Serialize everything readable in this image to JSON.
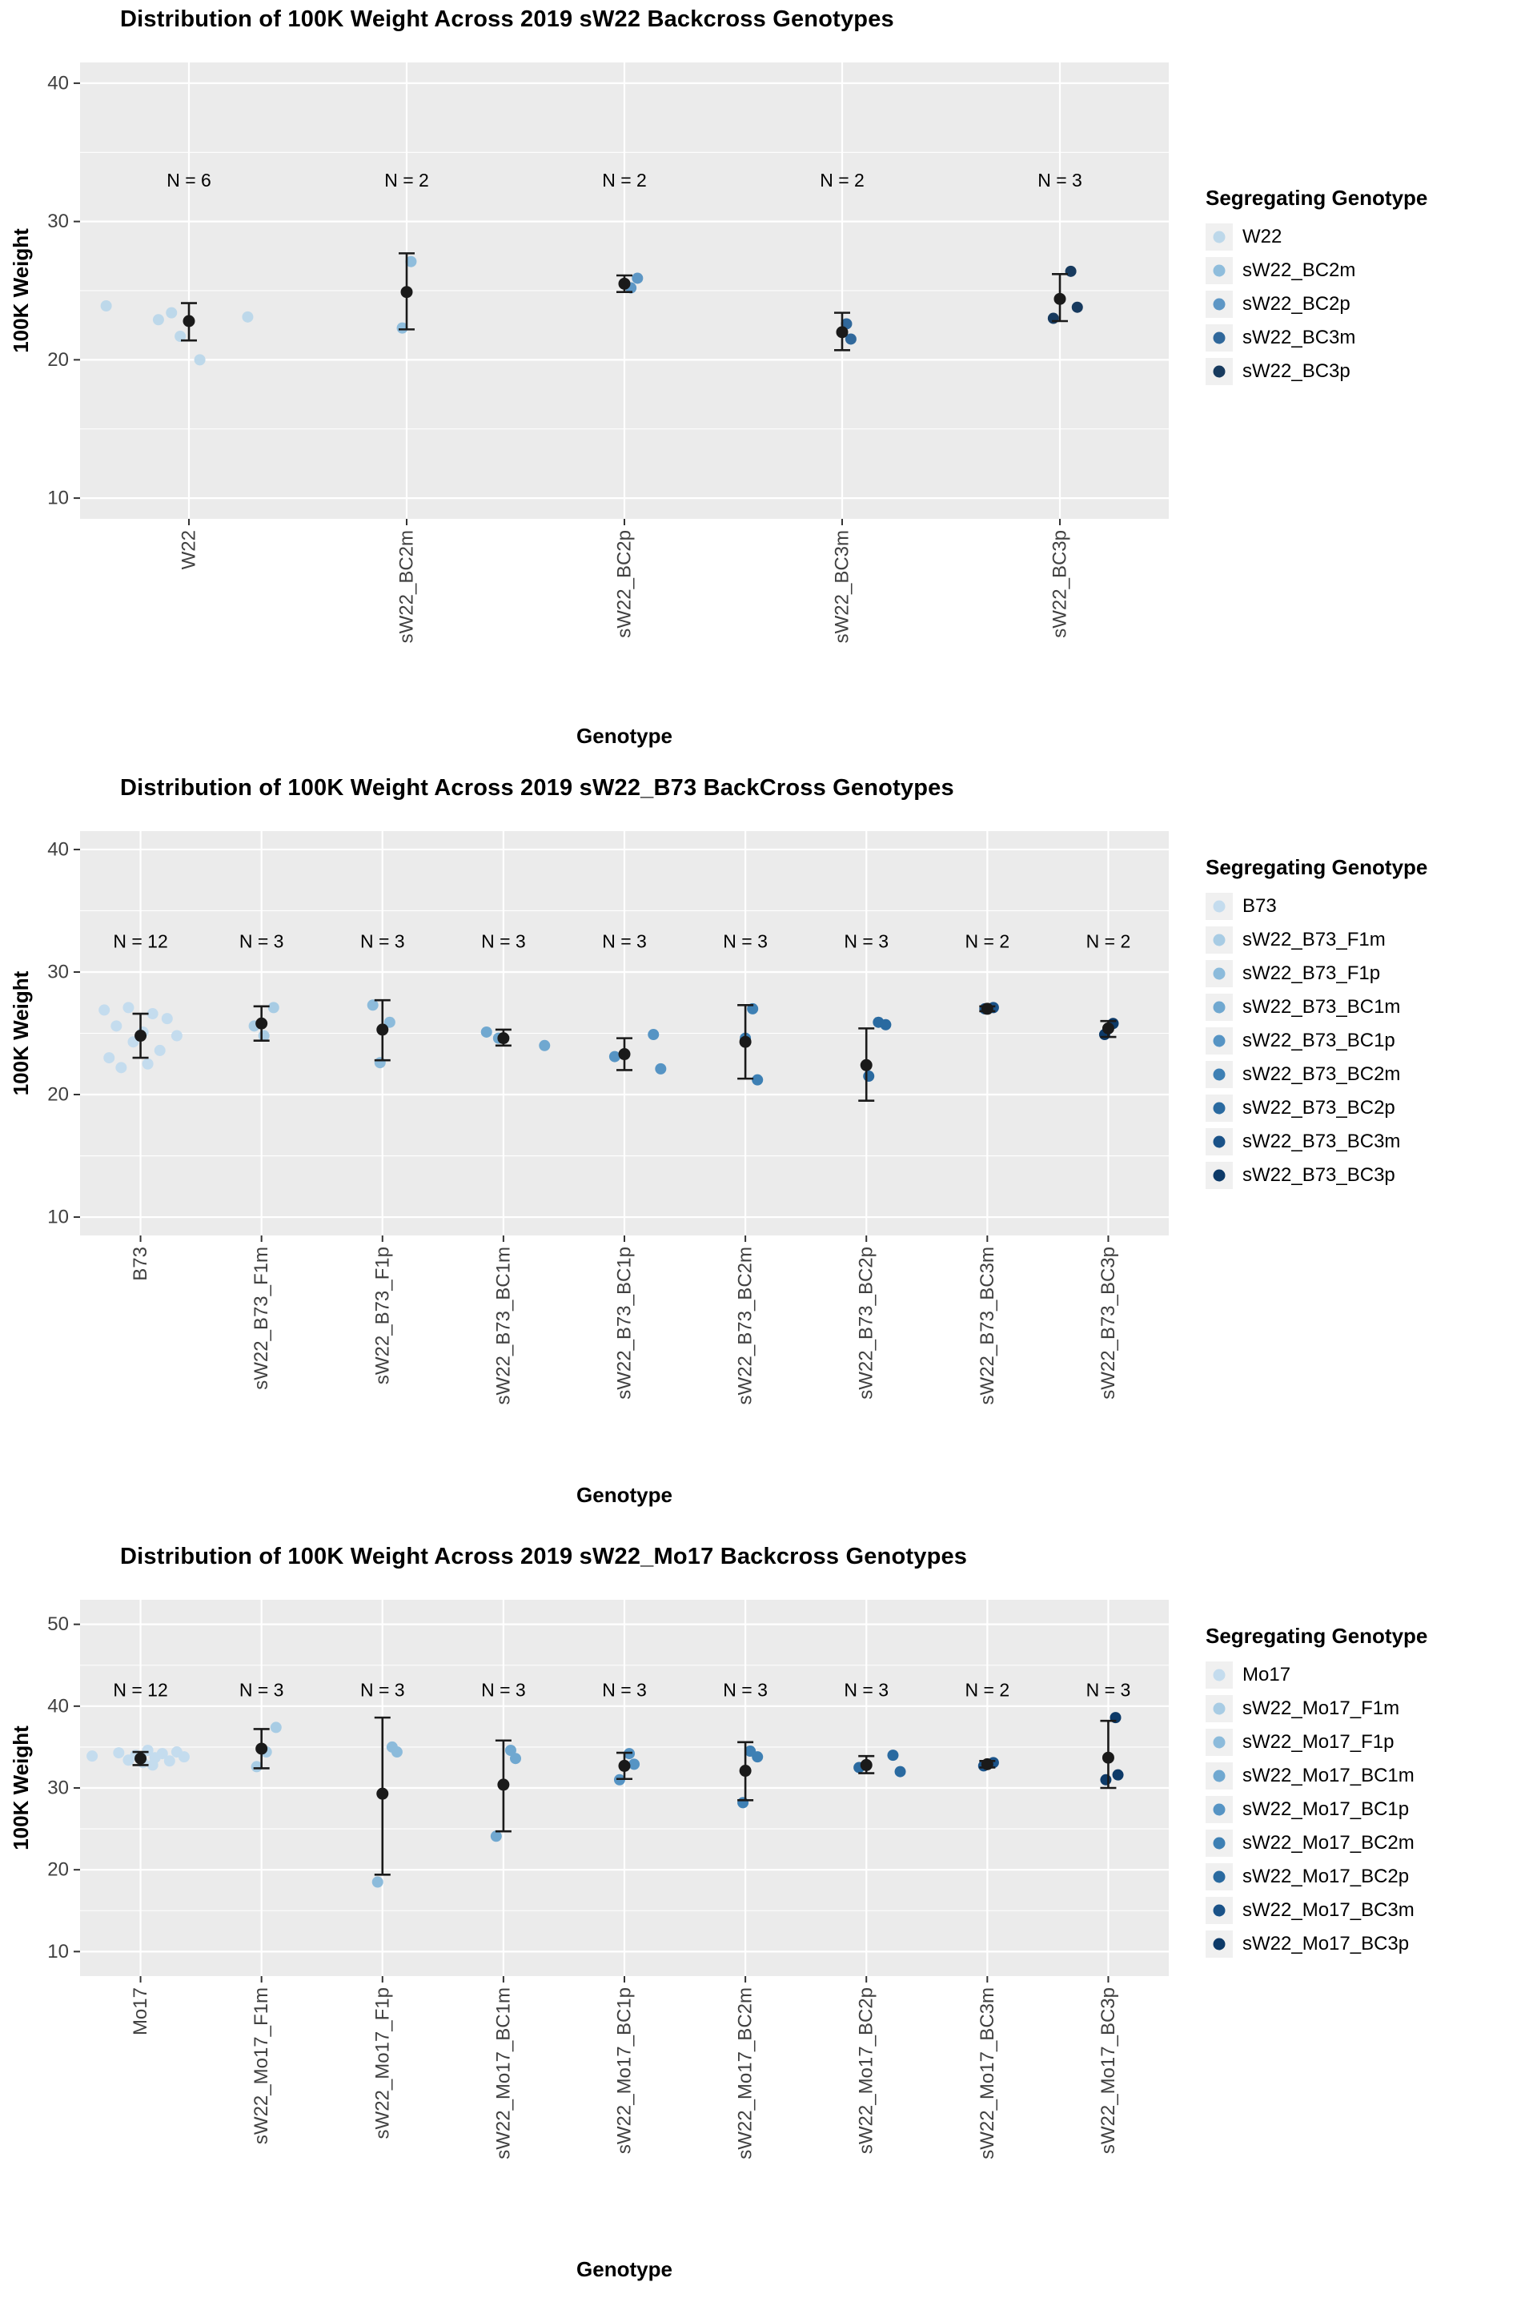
{
  "chart_data": [
    {
      "type": "scatter",
      "title": "Distribution of 100K Weight Across 2019 sW22 Backcross Genotypes",
      "xlabel": "Genotype",
      "ylabel": "100K Weight",
      "legend_title": "Segregating Genotype",
      "ylim": [
        8.5,
        41.5
      ],
      "yticks": [
        10,
        20,
        30,
        40
      ],
      "n_label_y": 33,
      "panel_bg": "#EBEBEB",
      "grid_color": "#FFFFFF",
      "stat_color": "#1a1a1a",
      "groups": [
        {
          "label": "W22",
          "color": "#BDD8EA",
          "n_label": "N = 6",
          "mean": 22.8,
          "lo": 21.4,
          "hi": 24.1,
          "points": [
            {
              "dx": -0.38,
              "y": 23.9
            },
            {
              "dx": -0.08,
              "y": 23.4
            },
            {
              "dx": -0.14,
              "y": 22.9
            },
            {
              "dx": -0.04,
              "y": 21.7
            },
            {
              "dx": 0.05,
              "y": 20.0
            },
            {
              "dx": 0.27,
              "y": 23.1
            }
          ]
        },
        {
          "label": "sW22_BC2m",
          "color": "#8FBDDC",
          "n_label": "N = 2",
          "mean": 24.9,
          "lo": 22.2,
          "hi": 27.7,
          "points": [
            {
              "dx": 0.02,
              "y": 27.1
            },
            {
              "dx": -0.02,
              "y": 22.3
            }
          ]
        },
        {
          "label": "sW22_BC2p",
          "color": "#5E97C5",
          "n_label": "N = 2",
          "mean": 25.5,
          "lo": 24.9,
          "hi": 26.1,
          "points": [
            {
              "dx": 0.06,
              "y": 25.9
            },
            {
              "dx": 0.03,
              "y": 25.2
            }
          ]
        },
        {
          "label": "sW22_BC3m",
          "color": "#30689B",
          "n_label": "N = 2",
          "mean": 22.0,
          "lo": 20.7,
          "hi": 23.4,
          "points": [
            {
              "dx": 0.02,
              "y": 22.6
            },
            {
              "dx": 0.04,
              "y": 21.5
            }
          ]
        },
        {
          "label": "sW22_BC3p",
          "color": "#173A5E",
          "n_label": "N = 3",
          "mean": 24.4,
          "lo": 22.8,
          "hi": 26.2,
          "points": [
            {
              "dx": 0.05,
              "y": 26.4
            },
            {
              "dx": -0.03,
              "y": 23.0
            },
            {
              "dx": 0.08,
              "y": 23.8
            }
          ]
        }
      ]
    },
    {
      "type": "scatter",
      "title": "Distribution of 100K Weight Across 2019 sW22_B73 BackCross Genotypes",
      "xlabel": "Genotype",
      "ylabel": "100K Weight",
      "legend_title": "Segregating Genotype",
      "ylim": [
        8.5,
        41.5
      ],
      "yticks": [
        10,
        20,
        30,
        40
      ],
      "n_label_y": 32.5,
      "panel_bg": "#EBEBEB",
      "grid_color": "#FFFFFF",
      "stat_color": "#1a1a1a",
      "groups": [
        {
          "label": "B73",
          "color": "#C4DCEE",
          "n_label": "N = 12",
          "mean": 24.8,
          "lo": 23.0,
          "hi": 26.6,
          "points": [
            {
              "dx": -0.3,
              "y": 26.9
            },
            {
              "dx": -0.1,
              "y": 27.1
            },
            {
              "dx": 0.1,
              "y": 26.6
            },
            {
              "dx": 0.22,
              "y": 26.2
            },
            {
              "dx": -0.2,
              "y": 25.6
            },
            {
              "dx": 0.02,
              "y": 25.1
            },
            {
              "dx": 0.3,
              "y": 24.8
            },
            {
              "dx": -0.06,
              "y": 24.3
            },
            {
              "dx": 0.16,
              "y": 23.6
            },
            {
              "dx": -0.26,
              "y": 23.0
            },
            {
              "dx": 0.06,
              "y": 22.5
            },
            {
              "dx": -0.16,
              "y": 22.2
            }
          ]
        },
        {
          "label": "sW22_B73_F1m",
          "color": "#A8CCE4",
          "n_label": "N = 3",
          "mean": 25.8,
          "lo": 24.4,
          "hi": 27.2,
          "points": [
            {
              "dx": 0.1,
              "y": 27.1
            },
            {
              "dx": -0.06,
              "y": 25.6
            },
            {
              "dx": 0.02,
              "y": 24.8
            }
          ]
        },
        {
          "label": "sW22_B73_F1p",
          "color": "#8CBBDB",
          "n_label": "N = 3",
          "mean": 25.3,
          "lo": 22.8,
          "hi": 27.7,
          "points": [
            {
              "dx": -0.08,
              "y": 27.3
            },
            {
              "dx": 0.06,
              "y": 25.9
            },
            {
              "dx": -0.02,
              "y": 22.6
            }
          ]
        },
        {
          "label": "sW22_B73_BC1m",
          "color": "#70A8D0",
          "n_label": "N = 3",
          "mean": 24.6,
          "lo": 24.0,
          "hi": 25.3,
          "points": [
            {
              "dx": -0.14,
              "y": 25.1
            },
            {
              "dx": -0.04,
              "y": 24.6
            },
            {
              "dx": 0.34,
              "y": 24.0
            }
          ]
        },
        {
          "label": "sW22_B73_BC1p",
          "color": "#5694C4",
          "n_label": "N = 3",
          "mean": 23.3,
          "lo": 22.0,
          "hi": 24.6,
          "points": [
            {
              "dx": -0.08,
              "y": 23.1
            },
            {
              "dx": 0.24,
              "y": 24.9
            },
            {
              "dx": 0.3,
              "y": 22.1
            }
          ]
        },
        {
          "label": "sW22_B73_BC2m",
          "color": "#3E80B4",
          "n_label": "N = 3",
          "mean": 24.3,
          "lo": 21.3,
          "hi": 27.3,
          "points": [
            {
              "dx": 0.06,
              "y": 27.0
            },
            {
              "dx": 0.0,
              "y": 24.6
            },
            {
              "dx": 0.1,
              "y": 21.2
            }
          ]
        },
        {
          "label": "sW22_B73_BC2p",
          "color": "#2A6AA0",
          "n_label": "N = 3",
          "mean": 22.4,
          "lo": 19.5,
          "hi": 25.4,
          "points": [
            {
              "dx": 0.1,
              "y": 25.9
            },
            {
              "dx": 0.16,
              "y": 25.7
            },
            {
              "dx": 0.02,
              "y": 21.5
            }
          ]
        },
        {
          "label": "sW22_B73_BC3m",
          "color": "#1A5288",
          "n_label": "N = 2",
          "mean": 27.0,
          "lo": 26.8,
          "hi": 27.2,
          "points": [
            {
              "dx": -0.02,
              "y": 27.0
            },
            {
              "dx": 0.05,
              "y": 27.1
            }
          ]
        },
        {
          "label": "sW22_B73_BC3p",
          "color": "#0D3A68",
          "n_label": "N = 2",
          "mean": 25.4,
          "lo": 24.7,
          "hi": 26.0,
          "points": [
            {
              "dx": -0.03,
              "y": 24.9
            },
            {
              "dx": 0.04,
              "y": 25.8
            }
          ]
        }
      ]
    },
    {
      "type": "scatter",
      "title": "Distribution of 100K Weight Across 2019 sW22_Mo17 Backcross Genotypes",
      "xlabel": "Genotype",
      "ylabel": "100K Weight",
      "legend_title": "Segregating Genotype",
      "ylim": [
        7,
        53
      ],
      "yticks": [
        10,
        20,
        30,
        40,
        50
      ],
      "n_label_y": 42,
      "panel_bg": "#EBEBEB",
      "grid_color": "#FFFFFF",
      "stat_color": "#1a1a1a",
      "groups": [
        {
          "label": "Mo17",
          "color": "#C4DCEE",
          "n_label": "N = 12",
          "mean": 33.6,
          "lo": 32.8,
          "hi": 34.4,
          "points": [
            {
              "dx": -0.4,
              "y": 33.9
            },
            {
              "dx": -0.18,
              "y": 34.3
            },
            {
              "dx": -0.1,
              "y": 33.4
            },
            {
              "dx": -0.04,
              "y": 34.0
            },
            {
              "dx": 0.02,
              "y": 33.1
            },
            {
              "dx": 0.06,
              "y": 34.6
            },
            {
              "dx": 0.12,
              "y": 33.7
            },
            {
              "dx": 0.18,
              "y": 34.2
            },
            {
              "dx": 0.24,
              "y": 33.3
            },
            {
              "dx": 0.3,
              "y": 34.4
            },
            {
              "dx": 0.36,
              "y": 33.8
            },
            {
              "dx": 0.1,
              "y": 32.8
            }
          ]
        },
        {
          "label": "sW22_Mo17_F1m",
          "color": "#A8CCE4",
          "n_label": "N = 3",
          "mean": 34.8,
          "lo": 32.4,
          "hi": 37.2,
          "points": [
            {
              "dx": 0.12,
              "y": 37.4
            },
            {
              "dx": -0.04,
              "y": 32.6
            },
            {
              "dx": 0.04,
              "y": 34.4
            }
          ]
        },
        {
          "label": "sW22_Mo17_F1p",
          "color": "#8CBBDB",
          "n_label": "N = 3",
          "mean": 29.3,
          "lo": 19.4,
          "hi": 38.6,
          "points": [
            {
              "dx": 0.08,
              "y": 35.0
            },
            {
              "dx": 0.12,
              "y": 34.4
            },
            {
              "dx": -0.04,
              "y": 18.5
            }
          ]
        },
        {
          "label": "sW22_Mo17_BC1m",
          "color": "#70A8D0",
          "n_label": "N = 3",
          "mean": 30.4,
          "lo": 24.7,
          "hi": 35.8,
          "points": [
            {
              "dx": 0.06,
              "y": 34.6
            },
            {
              "dx": 0.1,
              "y": 33.6
            },
            {
              "dx": -0.06,
              "y": 24.1
            }
          ]
        },
        {
          "label": "sW22_Mo17_BC1p",
          "color": "#5694C4",
          "n_label": "N = 3",
          "mean": 32.7,
          "lo": 31.1,
          "hi": 34.3,
          "points": [
            {
              "dx": 0.04,
              "y": 34.2
            },
            {
              "dx": -0.04,
              "y": 31.0
            },
            {
              "dx": 0.08,
              "y": 32.9
            }
          ]
        },
        {
          "label": "sW22_Mo17_BC2m",
          "color": "#3E80B4",
          "n_label": "N = 3",
          "mean": 32.1,
          "lo": 28.5,
          "hi": 35.6,
          "points": [
            {
              "dx": 0.04,
              "y": 34.5
            },
            {
              "dx": 0.1,
              "y": 33.8
            },
            {
              "dx": -0.02,
              "y": 28.2
            }
          ]
        },
        {
          "label": "sW22_Mo17_BC2p",
          "color": "#2A6AA0",
          "n_label": "N = 3",
          "mean": 32.8,
          "lo": 31.8,
          "hi": 33.9,
          "points": [
            {
              "dx": -0.06,
              "y": 32.5
            },
            {
              "dx": 0.22,
              "y": 34.0
            },
            {
              "dx": 0.28,
              "y": 32.0
            }
          ]
        },
        {
          "label": "sW22_Mo17_BC3m",
          "color": "#1A5288",
          "n_label": "N = 2",
          "mean": 32.9,
          "lo": 32.5,
          "hi": 33.3,
          "points": [
            {
              "dx": -0.03,
              "y": 32.7
            },
            {
              "dx": 0.05,
              "y": 33.1
            }
          ]
        },
        {
          "label": "sW22_Mo17_BC3p",
          "color": "#0D3A68",
          "n_label": "N = 3",
          "mean": 33.7,
          "lo": 30.0,
          "hi": 38.2,
          "points": [
            {
              "dx": 0.06,
              "y": 38.6
            },
            {
              "dx": -0.02,
              "y": 31.0
            },
            {
              "dx": 0.08,
              "y": 31.6
            }
          ]
        }
      ]
    }
  ]
}
